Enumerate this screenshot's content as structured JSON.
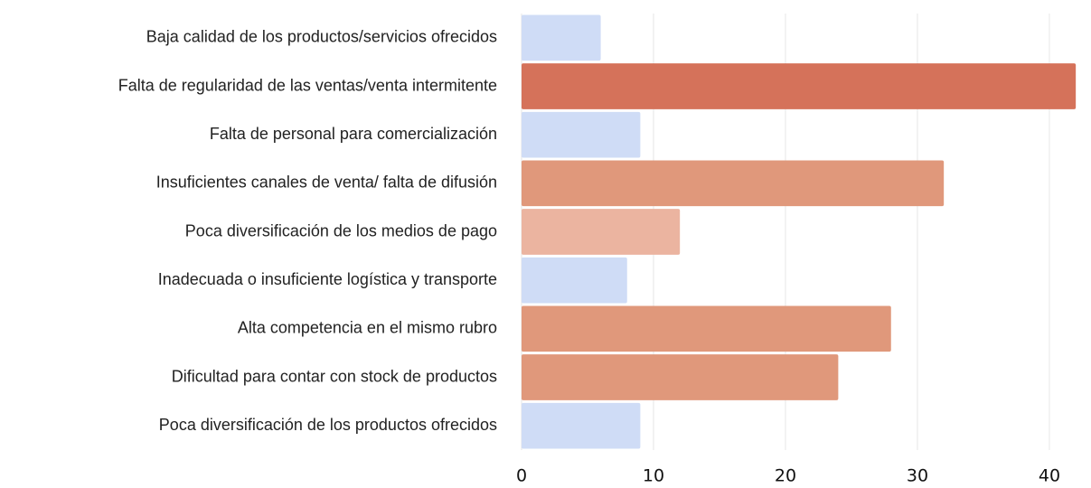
{
  "chart_data": {
    "type": "bar",
    "orientation": "horizontal",
    "categories": [
      "Baja calidad de los productos/servicios ofrecidos",
      "Falta de regularidad de las ventas/venta intermitente",
      "Falta de personal para comercialización",
      "Insuficientes canales de venta/ falta de difusión",
      "Poca diversificación de los medios de pago",
      "Inadecuada o insuficiente logística y transporte",
      "Alta competencia en el mismo rubro",
      "Dificultad para contar con stock de productos",
      "Poca diversificación de los productos ofrecidos"
    ],
    "values": [
      6,
      42,
      9,
      32,
      12,
      8,
      28,
      24,
      9
    ],
    "colors": [
      "#cfdcf6",
      "#d5725a",
      "#cfdcf6",
      "#e0987b",
      "#ebb4a0",
      "#cfdcf6",
      "#e0987b",
      "#e0987b",
      "#cfdcf6"
    ],
    "xlim": [
      0,
      42.4
    ],
    "xticks": [
      0,
      10,
      20,
      30,
      40
    ],
    "grid": true
  }
}
